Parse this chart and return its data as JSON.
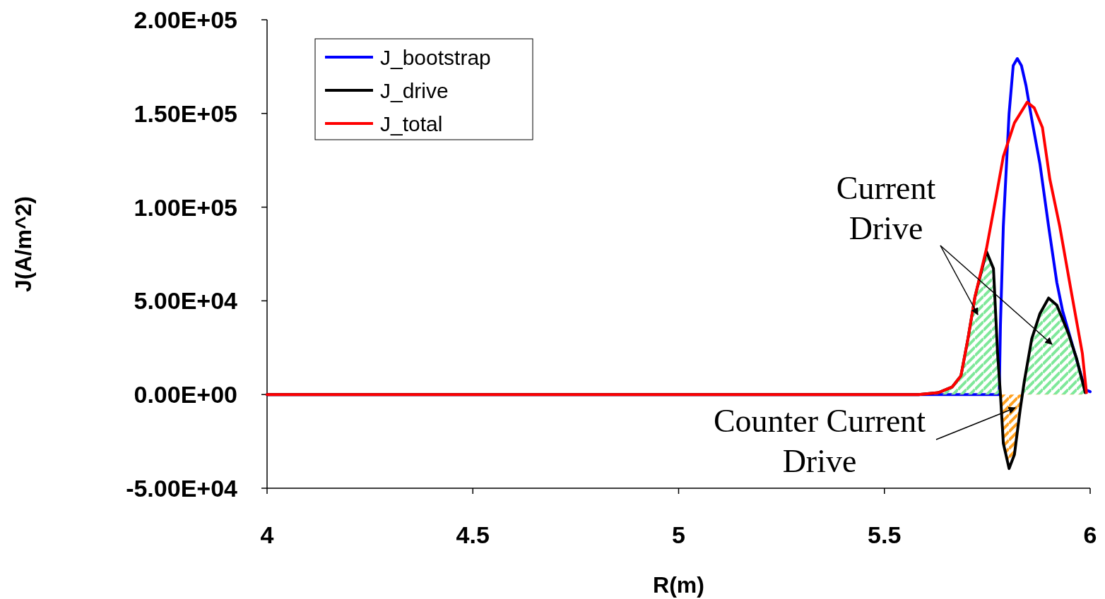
{
  "chart_data": {
    "type": "line",
    "xlabel": "R(m)",
    "ylabel": "J(A/m^2)",
    "xlim": [
      4,
      6
    ],
    "xticks": [
      4,
      4.5,
      5,
      5.5,
      6
    ],
    "ylim": [
      -50000,
      200000
    ],
    "yticks": [
      {
        "value": -50000,
        "label": "-5.00E+04"
      },
      {
        "value": 0,
        "label": "0.00E+00"
      },
      {
        "value": 50000,
        "label": "5.00E+04"
      },
      {
        "value": 100000,
        "label": "1.00E+05"
      },
      {
        "value": 150000,
        "label": "1.50E+05"
      },
      {
        "value": 200000,
        "label": "2.00E+05"
      }
    ],
    "grid": false,
    "legend": "top left",
    "marker": "none",
    "line_style": "solid",
    "annotations": [
      "Current Drive",
      "Counter Current Drive"
    ],
    "series": [
      {
        "name": "J_bootstrap",
        "color": "#0000ff",
        "x": [
          4,
          5.5,
          5.758,
          5.779,
          5.782,
          5.789,
          5.803,
          5.813,
          5.823,
          5.833,
          5.844,
          5.858,
          5.878,
          5.899,
          5.919,
          5.933,
          5.988,
          6
        ],
        "values": [
          0,
          0,
          0,
          0,
          37200,
          89800,
          150000,
          175500,
          179300,
          175500,
          165000,
          147000,
          123000,
          89800,
          59800,
          44700,
          2600,
          1500
        ]
      },
      {
        "name": "J_drive",
        "type": "area",
        "color": "#000000",
        "x": [
          4,
          5.583,
          5.631,
          5.665,
          5.686,
          5.703,
          5.72,
          5.748,
          5.765,
          5.775,
          5.782,
          5.789,
          5.803,
          5.816,
          5.83,
          5.84,
          5.858,
          5.878,
          5.899,
          5.919,
          5.947,
          5.967,
          5.988
        ],
        "values": [
          0,
          0,
          1000,
          4100,
          10000,
          29700,
          52000,
          76300,
          67300,
          22200,
          0,
          -26000,
          -39500,
          -32000,
          -7900,
          7100,
          29700,
          43200,
          51500,
          47700,
          32700,
          19200,
          1000
        ]
      },
      {
        "name": "J_total",
        "color": "#ff0000",
        "x": [
          4,
          5.583,
          5.631,
          5.665,
          5.686,
          5.703,
          5.72,
          5.748,
          5.771,
          5.789,
          5.816,
          5.847,
          5.864,
          5.884,
          5.902,
          5.926,
          5.954,
          5.981,
          5.991
        ],
        "values": [
          0,
          0,
          1000,
          4100,
          10000,
          29700,
          52000,
          77800,
          105000,
          127000,
          145000,
          156000,
          153000,
          142500,
          115000,
          89800,
          55000,
          22000,
          1000
        ]
      }
    ]
  }
}
